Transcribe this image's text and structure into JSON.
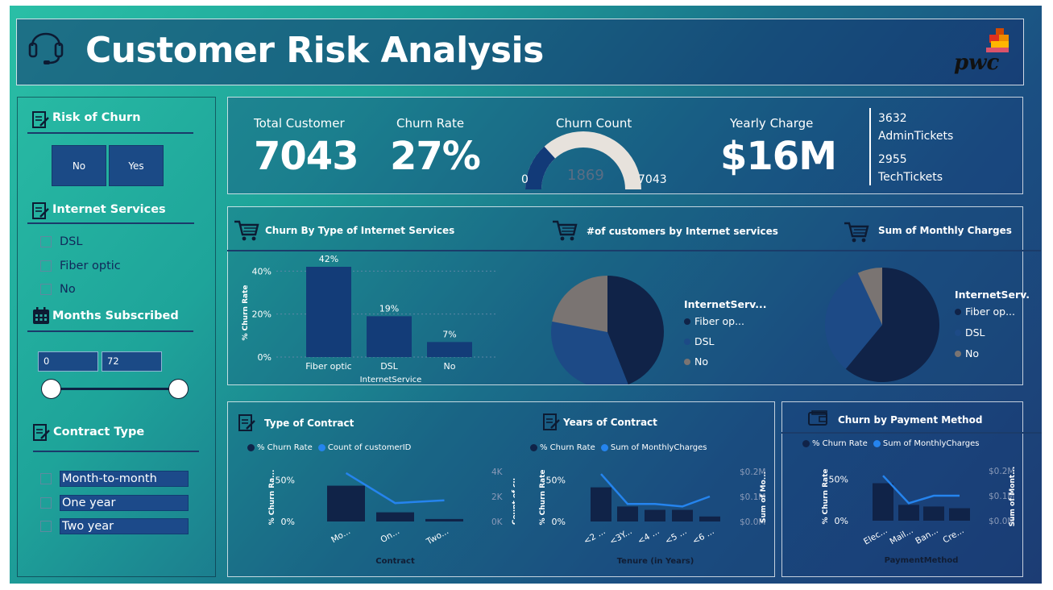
{
  "header": {
    "title": "Customer Risk Analysis",
    "logo_text": "pwc",
    "icon": "headset-icon"
  },
  "filters": {
    "risk": {
      "title": "Risk of Churn",
      "buttons": [
        "No",
        "Yes"
      ]
    },
    "internet": {
      "title": "Internet Services",
      "options": [
        "DSL",
        "Fiber optic",
        "No"
      ]
    },
    "months": {
      "title": "Months Subscribed",
      "min_value": "0",
      "max_value": "72",
      "range_min": 0,
      "range_max": 72
    },
    "contract": {
      "title": "Contract Type",
      "options": [
        "Month-to-month",
        "One year",
        "Two year"
      ]
    }
  },
  "kpis": {
    "total_customer_label": "Total Customer",
    "total_customer_value": "7043",
    "churn_rate_label": "Churn Rate",
    "churn_rate_value": "27%",
    "churn_count_label": "Churn Count",
    "churn_count_value": "1869",
    "churn_count_min": "0",
    "churn_count_max": "7043",
    "yearly_charge_label": "Yearly Charge",
    "yearly_charge_value": "$16M",
    "admin_tickets_count": "3632",
    "admin_tickets_label": "AdminTickets",
    "tech_tickets_count": "2955",
    "tech_tickets_label": "TechTickets"
  },
  "colors": {
    "navy": "#102348",
    "mid_blue": "#1d4a86",
    "gray": "#7a7472",
    "bright_blue": "#2584ee"
  },
  "chart_data": [
    {
      "id": "churn_by_internet",
      "type": "bar",
      "title": "Churn By Type of Internet Services",
      "categories": [
        "Fiber optic",
        "DSL",
        "No"
      ],
      "values": [
        42,
        19,
        7
      ],
      "data_labels": [
        "42%",
        "19%",
        "7%"
      ],
      "xlabel": "InternetService",
      "ylabel": "% Churn Rate",
      "yticks": [
        "0%",
        "20%",
        "40%"
      ],
      "ylim": [
        0,
        45
      ]
    },
    {
      "id": "customers_by_internet",
      "type": "pie",
      "title": "#of customers by Internet services",
      "legend_title": "InternetServ...",
      "legend": [
        "Fiber op...",
        "DSL",
        "No"
      ],
      "values": [
        44,
        34,
        22
      ]
    },
    {
      "id": "monthly_charges",
      "type": "pie",
      "title": "Sum of Monthly Charges",
      "legend_title": "InternetServ...",
      "legend": [
        "Fiber op...",
        "DSL",
        "No"
      ],
      "values": [
        61,
        32,
        7
      ]
    },
    {
      "id": "type_of_contract",
      "type": "bar",
      "title": "Type of Contract",
      "legend": [
        "% Churn Rate",
        "Count of customerID"
      ],
      "categories": [
        "Mo...",
        "On...",
        "Two..."
      ],
      "churn_rate": [
        43,
        11,
        3
      ],
      "count_line": [
        3875,
        1473,
        1695
      ],
      "xlabel": "Contract",
      "ylabel": "% Churn Ra...",
      "y2label": "Count of cu...",
      "yticks": [
        "0%",
        "50%"
      ],
      "y2ticks": [
        "0K",
        "2K",
        "4K"
      ]
    },
    {
      "id": "years_of_contract",
      "type": "bar",
      "title": "Years of Contract",
      "legend": [
        "% Churn Rate",
        "Sum of MonthlyCharges"
      ],
      "categories": [
        "<2 ...",
        "<3Y...",
        "<4 ...",
        "<5 ...",
        "<6 ..."
      ],
      "churn_rate": [
        41,
        18,
        14,
        14,
        6
      ],
      "charges_line": [
        0.19,
        0.07,
        0.07,
        0.06,
        0.1
      ],
      "xlabel": "Tenure (in Years)",
      "ylabel": "% Churn Rate",
      "y2label": "Sum of Mo...",
      "yticks": [
        "0%",
        "50%"
      ],
      "y2ticks": [
        "$0.0M",
        "$0.1M",
        "$0.2M"
      ]
    },
    {
      "id": "churn_by_payment",
      "type": "bar",
      "title": "Churn by Payment Method",
      "legend": [
        "% Churn Rate",
        "Sum of MonthlyCharges"
      ],
      "categories": [
        "Elec...",
        "Mail...",
        "Ban...",
        "Cre..."
      ],
      "churn_rate": [
        45,
        19,
        17,
        15
      ],
      "charges_line": [
        0.18,
        0.07,
        0.1,
        0.1
      ],
      "xlabel": "PaymentMethod",
      "ylabel": "% Churn Rate",
      "y2label": "Sum of Mont...",
      "yticks": [
        "0%",
        "50%"
      ],
      "y2ticks": [
        "$0.0M",
        "$0.1M",
        "$0.2M"
      ]
    }
  ]
}
